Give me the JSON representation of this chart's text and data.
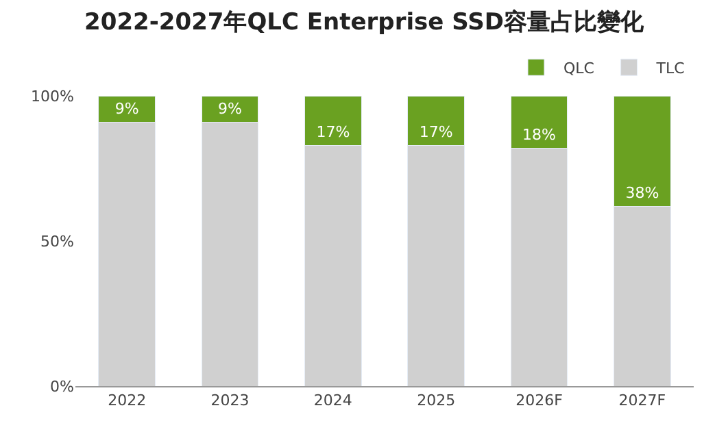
{
  "chart_data": {
    "type": "bar",
    "title": "2022-2027年QLC Enterprise SSD容量占比變化",
    "categories": [
      "2022",
      "2023",
      "2024",
      "2025",
      "2026F",
      "2027F"
    ],
    "stacked": true,
    "series": [
      {
        "name": "TLC",
        "color": "#d0d0d0",
        "values": [
          91,
          91,
          83,
          83,
          82,
          62
        ]
      },
      {
        "name": "QLC",
        "color": "#6aa121",
        "values": [
          9,
          9,
          17,
          17,
          18,
          38
        ],
        "value_labels": [
          "9%",
          "9%",
          "17%",
          "17%",
          "18%",
          "38%"
        ]
      }
    ],
    "ylim": [
      0,
      100
    ],
    "yticks": [
      {
        "value": 0,
        "label": "0%"
      },
      {
        "value": 50,
        "label": "50%"
      },
      {
        "value": 100,
        "label": "100%"
      }
    ],
    "legend": "top right"
  }
}
